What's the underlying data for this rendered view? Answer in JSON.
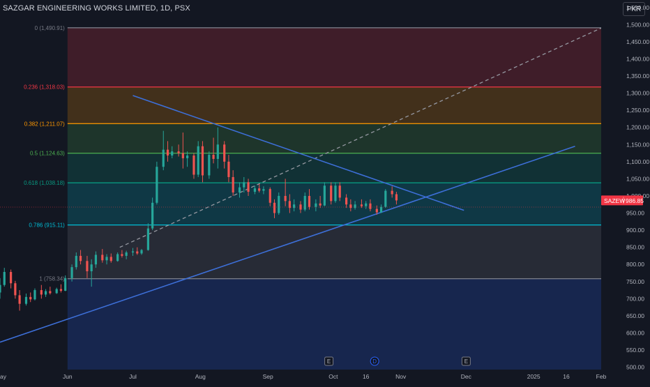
{
  "header": {
    "title": "SAZGAR ENGINEERING WORKS LIMITED, 1D, PSX",
    "currency_button": "PKR"
  },
  "chart_data": {
    "type": "candlestick",
    "symbol": "SAZEW",
    "last_price": "986.85",
    "last_price_value": 986.85,
    "y_range": [
      493,
      1572
    ],
    "y_ticks": [
      500,
      550,
      600,
      650,
      700,
      750,
      800,
      850,
      900,
      950,
      1000,
      1050,
      1100,
      1150,
      1200,
      1250,
      1300,
      1350,
      1400,
      1450,
      1500,
      1550
    ],
    "y_tick_labels": [
      "500.00",
      "550.00",
      "600.00",
      "650.00",
      "700.00",
      "750.00",
      "800.00",
      "850.00",
      "900.00",
      "950.00",
      "1,000.00",
      "1,050.00",
      "1,100.00",
      "1,150.00",
      "1,200.00",
      "1,250.00",
      "1,300.00",
      "1,350.00",
      "1,400.00",
      "1,450.00",
      "1,500.00",
      "1,550.00"
    ],
    "x_range": [
      "2024-05-01",
      "2025-02-01"
    ],
    "x_ticks": [
      {
        "label": "ay",
        "date": "2024-05-01"
      },
      {
        "label": "Jun",
        "date": "2024-06-01"
      },
      {
        "label": "Jul",
        "date": "2024-07-01"
      },
      {
        "label": "Aug",
        "date": "2024-08-01"
      },
      {
        "label": "Sep",
        "date": "2024-09-01"
      },
      {
        "label": "Oct",
        "date": "2024-10-01"
      },
      {
        "label": "16",
        "date": "2024-10-16"
      },
      {
        "label": "Nov",
        "date": "2024-11-01"
      },
      {
        "label": "Dec",
        "date": "2024-12-01"
      },
      {
        "label": "2025",
        "date": "2025-01-01"
      },
      {
        "label": "16",
        "date": "2025-01-16"
      },
      {
        "label": "Feb",
        "date": "2025-02-01"
      }
    ],
    "fib_start_date": "2024-06-01",
    "fib_end_date": "2025-02-01",
    "fib_levels": [
      {
        "ratio": "0",
        "value": 1490.91,
        "label": "0 (1,490.91)",
        "color": "#787b86",
        "zone": "#f23645"
      },
      {
        "ratio": "0.236",
        "value": 1318.03,
        "label": "0.236 (1,318.03)",
        "color": "#f23645",
        "zone": "#ff9800"
      },
      {
        "ratio": "0.382",
        "value": 1211.07,
        "label": "0.382 (1,211.07)",
        "color": "#ff9800",
        "zone": "#4caf50"
      },
      {
        "ratio": "0.5",
        "value": 1124.63,
        "label": "0.5 (1,124.63)",
        "color": "#4caf50",
        "zone": "#089981"
      },
      {
        "ratio": "0.618",
        "value": 1038.18,
        "label": "0.618 (1,038.18)",
        "color": "#089981",
        "zone": "#00bcd4"
      },
      {
        "ratio": "0.786",
        "value": 915.11,
        "label": "0.786 (915.11)",
        "color": "#00bcd4",
        "zone": "#787b86"
      },
      {
        "ratio": "1",
        "value": 758.34,
        "label": "1 (758.34)",
        "color": "#787b86",
        "zone": "#2962ff"
      }
    ],
    "trendlines": [
      {
        "name": "",
        "style": "dashed",
        "color": "#9598a1",
        "from": {
          "date": "2024-06-25",
          "value": 850
        },
        "to": {
          "date": "2025-02-01",
          "value": 1490
        }
      },
      {
        "name": "",
        "style": "solid",
        "color": "#3d6fd8",
        "from": {
          "date": "2024-07-01",
          "value": 1293
        },
        "to": {
          "date": "2024-11-30",
          "value": 958
        }
      },
      {
        "name": "",
        "style": "solid",
        "color": "#3d6fd8",
        "from": {
          "date": "2024-05-01",
          "value": 573
        },
        "to": {
          "date": "2025-01-20",
          "value": 1145
        }
      }
    ],
    "event_markers": [
      {
        "label": "E",
        "date": "2024-09-29",
        "kind": "earnings"
      },
      {
        "label": "D",
        "date": "2024-10-20",
        "kind": "dividend"
      },
      {
        "label": "E",
        "date": "2024-12-01",
        "kind": "earnings"
      }
    ],
    "candles": [
      {
        "date": "2024-05-01",
        "o": 718,
        "h": 760,
        "l": 700,
        "c": 740
      },
      {
        "date": "2024-05-03",
        "o": 740,
        "h": 790,
        "l": 735,
        "c": 778
      },
      {
        "date": "2024-05-06",
        "o": 778,
        "h": 785,
        "l": 730,
        "c": 745
      },
      {
        "date": "2024-05-08",
        "o": 745,
        "h": 752,
        "l": 700,
        "c": 710
      },
      {
        "date": "2024-05-10",
        "o": 710,
        "h": 725,
        "l": 665,
        "c": 685
      },
      {
        "date": "2024-05-13",
        "o": 685,
        "h": 715,
        "l": 680,
        "c": 705
      },
      {
        "date": "2024-05-15",
        "o": 705,
        "h": 718,
        "l": 690,
        "c": 698
      },
      {
        "date": "2024-05-17",
        "o": 698,
        "h": 730,
        "l": 695,
        "c": 725
      },
      {
        "date": "2024-05-20",
        "o": 725,
        "h": 740,
        "l": 700,
        "c": 712
      },
      {
        "date": "2024-05-22",
        "o": 712,
        "h": 728,
        "l": 705,
        "c": 722
      },
      {
        "date": "2024-05-24",
        "o": 722,
        "h": 735,
        "l": 712,
        "c": 716
      },
      {
        "date": "2024-05-27",
        "o": 716,
        "h": 732,
        "l": 714,
        "c": 728
      },
      {
        "date": "2024-05-29",
        "o": 728,
        "h": 742,
        "l": 718,
        "c": 723
      },
      {
        "date": "2024-05-31",
        "o": 723,
        "h": 768,
        "l": 722,
        "c": 760
      },
      {
        "date": "2024-06-03",
        "o": 760,
        "h": 800,
        "l": 750,
        "c": 792
      },
      {
        "date": "2024-06-05",
        "o": 792,
        "h": 835,
        "l": 785,
        "c": 825
      },
      {
        "date": "2024-06-07",
        "o": 825,
        "h": 842,
        "l": 800,
        "c": 810
      },
      {
        "date": "2024-06-10",
        "o": 810,
        "h": 825,
        "l": 760,
        "c": 780
      },
      {
        "date": "2024-06-12",
        "o": 780,
        "h": 815,
        "l": 735,
        "c": 800
      },
      {
        "date": "2024-06-14",
        "o": 800,
        "h": 838,
        "l": 790,
        "c": 828
      },
      {
        "date": "2024-06-17",
        "o": 828,
        "h": 845,
        "l": 805,
        "c": 812
      },
      {
        "date": "2024-06-19",
        "o": 812,
        "h": 830,
        "l": 800,
        "c": 822
      },
      {
        "date": "2024-06-21",
        "o": 822,
        "h": 832,
        "l": 805,
        "c": 810
      },
      {
        "date": "2024-06-24",
        "o": 810,
        "h": 835,
        "l": 808,
        "c": 830
      },
      {
        "date": "2024-06-26",
        "o": 830,
        "h": 842,
        "l": 820,
        "c": 825
      },
      {
        "date": "2024-06-28",
        "o": 825,
        "h": 840,
        "l": 815,
        "c": 835
      },
      {
        "date": "2024-07-01",
        "o": 835,
        "h": 848,
        "l": 825,
        "c": 838
      },
      {
        "date": "2024-07-03",
        "o": 838,
        "h": 850,
        "l": 828,
        "c": 832
      },
      {
        "date": "2024-07-05",
        "o": 832,
        "h": 845,
        "l": 828,
        "c": 842
      },
      {
        "date": "2024-07-08",
        "o": 842,
        "h": 920,
        "l": 840,
        "c": 905
      },
      {
        "date": "2024-07-10",
        "o": 905,
        "h": 995,
        "l": 900,
        "c": 980
      },
      {
        "date": "2024-07-12",
        "o": 980,
        "h": 1100,
        "l": 975,
        "c": 1085
      },
      {
        "date": "2024-07-15",
        "o": 1085,
        "h": 1190,
        "l": 1075,
        "c": 1135
      },
      {
        "date": "2024-07-17",
        "o": 1135,
        "h": 1160,
        "l": 1100,
        "c": 1118
      },
      {
        "date": "2024-07-19",
        "o": 1118,
        "h": 1145,
        "l": 1110,
        "c": 1130
      },
      {
        "date": "2024-07-22",
        "o": 1130,
        "h": 1150,
        "l": 1115,
        "c": 1125
      },
      {
        "date": "2024-07-24",
        "o": 1125,
        "h": 1185,
        "l": 1080,
        "c": 1110
      },
      {
        "date": "2024-07-26",
        "o": 1110,
        "h": 1130,
        "l": 1085,
        "c": 1118
      },
      {
        "date": "2024-07-29",
        "o": 1118,
        "h": 1125,
        "l": 1050,
        "c": 1062
      },
      {
        "date": "2024-07-31",
        "o": 1062,
        "h": 1160,
        "l": 1055,
        "c": 1145
      },
      {
        "date": "2024-08-02",
        "o": 1145,
        "h": 1160,
        "l": 1040,
        "c": 1060
      },
      {
        "date": "2024-08-05",
        "o": 1060,
        "h": 1130,
        "l": 1050,
        "c": 1120
      },
      {
        "date": "2024-08-07",
        "o": 1120,
        "h": 1170,
        "l": 1095,
        "c": 1108
      },
      {
        "date": "2024-08-09",
        "o": 1108,
        "h": 1200,
        "l": 1080,
        "c": 1150
      },
      {
        "date": "2024-08-12",
        "o": 1150,
        "h": 1160,
        "l": 1080,
        "c": 1100
      },
      {
        "date": "2024-08-14",
        "o": 1100,
        "h": 1120,
        "l": 1040,
        "c": 1055
      },
      {
        "date": "2024-08-16",
        "o": 1055,
        "h": 1075,
        "l": 1000,
        "c": 1010
      },
      {
        "date": "2024-08-19",
        "o": 1010,
        "h": 1040,
        "l": 995,
        "c": 1025
      },
      {
        "date": "2024-08-21",
        "o": 1025,
        "h": 1055,
        "l": 1010,
        "c": 1040
      },
      {
        "date": "2024-08-23",
        "o": 1040,
        "h": 1050,
        "l": 1000,
        "c": 1012
      },
      {
        "date": "2024-08-26",
        "o": 1012,
        "h": 1030,
        "l": 1005,
        "c": 1022
      },
      {
        "date": "2024-08-28",
        "o": 1022,
        "h": 1035,
        "l": 1010,
        "c": 1015
      },
      {
        "date": "2024-08-30",
        "o": 1015,
        "h": 1028,
        "l": 1005,
        "c": 1020
      },
      {
        "date": "2024-09-02",
        "o": 1020,
        "h": 1025,
        "l": 970,
        "c": 980
      },
      {
        "date": "2024-09-04",
        "o": 980,
        "h": 990,
        "l": 935,
        "c": 950
      },
      {
        "date": "2024-09-06",
        "o": 950,
        "h": 1010,
        "l": 945,
        "c": 1000
      },
      {
        "date": "2024-09-09",
        "o": 1000,
        "h": 1050,
        "l": 970,
        "c": 985
      },
      {
        "date": "2024-09-11",
        "o": 985,
        "h": 1005,
        "l": 950,
        "c": 965
      },
      {
        "date": "2024-09-13",
        "o": 965,
        "h": 990,
        "l": 955,
        "c": 975
      },
      {
        "date": "2024-09-16",
        "o": 975,
        "h": 985,
        "l": 950,
        "c": 960
      },
      {
        "date": "2024-09-18",
        "o": 960,
        "h": 1010,
        "l": 955,
        "c": 1000
      },
      {
        "date": "2024-09-20",
        "o": 1000,
        "h": 1020,
        "l": 960,
        "c": 968
      },
      {
        "date": "2024-09-23",
        "o": 968,
        "h": 990,
        "l": 955,
        "c": 978
      },
      {
        "date": "2024-09-25",
        "o": 978,
        "h": 1000,
        "l": 965,
        "c": 972
      },
      {
        "date": "2024-09-27",
        "o": 972,
        "h": 1040,
        "l": 970,
        "c": 1030
      },
      {
        "date": "2024-09-30",
        "o": 1030,
        "h": 1040,
        "l": 975,
        "c": 985
      },
      {
        "date": "2024-10-02",
        "o": 985,
        "h": 1040,
        "l": 980,
        "c": 1030
      },
      {
        "date": "2024-10-04",
        "o": 1030,
        "h": 1040,
        "l": 985,
        "c": 995
      },
      {
        "date": "2024-10-07",
        "o": 995,
        "h": 1005,
        "l": 965,
        "c": 975
      },
      {
        "date": "2024-10-09",
        "o": 975,
        "h": 990,
        "l": 955,
        "c": 965
      },
      {
        "date": "2024-10-11",
        "o": 965,
        "h": 985,
        "l": 960,
        "c": 975
      },
      {
        "date": "2024-10-14",
        "o": 975,
        "h": 990,
        "l": 965,
        "c": 970
      },
      {
        "date": "2024-10-16",
        "o": 970,
        "h": 985,
        "l": 962,
        "c": 978
      },
      {
        "date": "2024-10-18",
        "o": 978,
        "h": 990,
        "l": 955,
        "c": 962
      },
      {
        "date": "2024-10-21",
        "o": 962,
        "h": 972,
        "l": 945,
        "c": 952
      },
      {
        "date": "2024-10-23",
        "o": 952,
        "h": 975,
        "l": 950,
        "c": 968
      },
      {
        "date": "2024-10-25",
        "o": 968,
        "h": 1020,
        "l": 965,
        "c": 1015
      },
      {
        "date": "2024-10-28",
        "o": 1015,
        "h": 1028,
        "l": 995,
        "c": 1005
      },
      {
        "date": "2024-10-30",
        "o": 1005,
        "h": 1012,
        "l": 975,
        "c": 986.85
      }
    ]
  }
}
